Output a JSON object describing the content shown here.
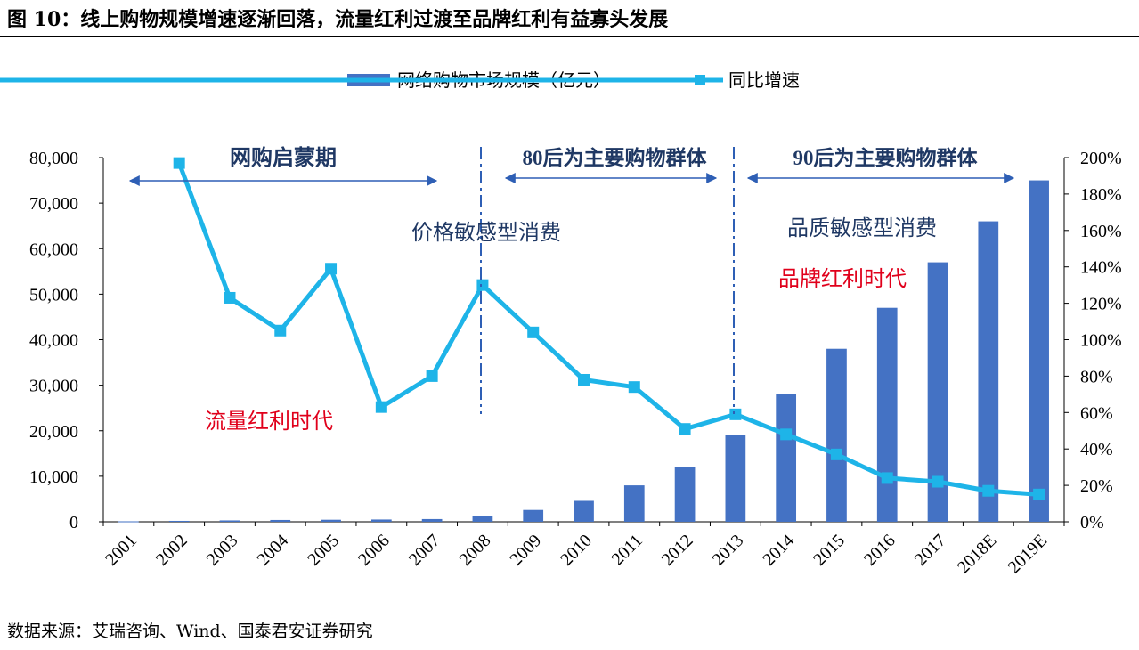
{
  "figure": {
    "title": "图 10：线上购物规模增速逐渐回落，流量红利过渡至品牌红利有益寡头发展",
    "source": "数据来源：艾瑞咨询、Wind、国泰君安证券研究"
  },
  "chart_data": {
    "type": "bar+line",
    "categories": [
      "2001",
      "2002",
      "2003",
      "2004",
      "2005",
      "2006",
      "2007",
      "2008",
      "2009",
      "2010",
      "2011",
      "2012",
      "2013",
      "2014",
      "2015",
      "2016",
      "2017",
      "2018E",
      "2019E"
    ],
    "series": [
      {
        "name": "网络购物市场规模（亿元）",
        "type": "bar",
        "axis": "left",
        "color": "#4472C4",
        "values": [
          100,
          200,
          300,
          400,
          450,
          500,
          600,
          1300,
          2600,
          4600,
          8000,
          12000,
          19000,
          28000,
          38000,
          47000,
          57000,
          66000,
          75000
        ]
      },
      {
        "name": "同比增速",
        "type": "line",
        "axis": "right",
        "color": "#1EB4E8",
        "values": [
          null,
          1.97,
          1.23,
          1.05,
          1.39,
          0.63,
          0.8,
          1.3,
          1.04,
          0.78,
          0.74,
          0.51,
          0.59,
          0.48,
          0.37,
          0.24,
          0.22,
          0.17,
          0.15
        ]
      }
    ],
    "y_left": {
      "min": 0,
      "max": 80000,
      "ticks": [
        "0",
        "10,000",
        "20,000",
        "30,000",
        "40,000",
        "50,000",
        "60,000",
        "70,000",
        "80,000"
      ]
    },
    "y_right": {
      "min": 0,
      "max": 2.0,
      "ticks": [
        "0%",
        "20%",
        "40%",
        "60%",
        "80%",
        "100%",
        "120%",
        "140%",
        "160%",
        "180%",
        "200%"
      ]
    },
    "legend_position": "top-center",
    "grid": false,
    "annotations": {
      "phase1_label": "网购启蒙期",
      "phase2_label": "80后为主要购物群体",
      "phase3_label": "90后为主要购物群体",
      "price_sensitive": "价格敏感型消费",
      "quality_sensitive": "品质敏感型消费",
      "traffic_dividend": "流量红利时代",
      "brand_dividend": "品牌红利时代"
    },
    "colors": {
      "bar": "#4472C4",
      "line": "#1EB4E8",
      "annotation_navy": "#1F3864",
      "annotation_red": "#E0001B"
    }
  }
}
